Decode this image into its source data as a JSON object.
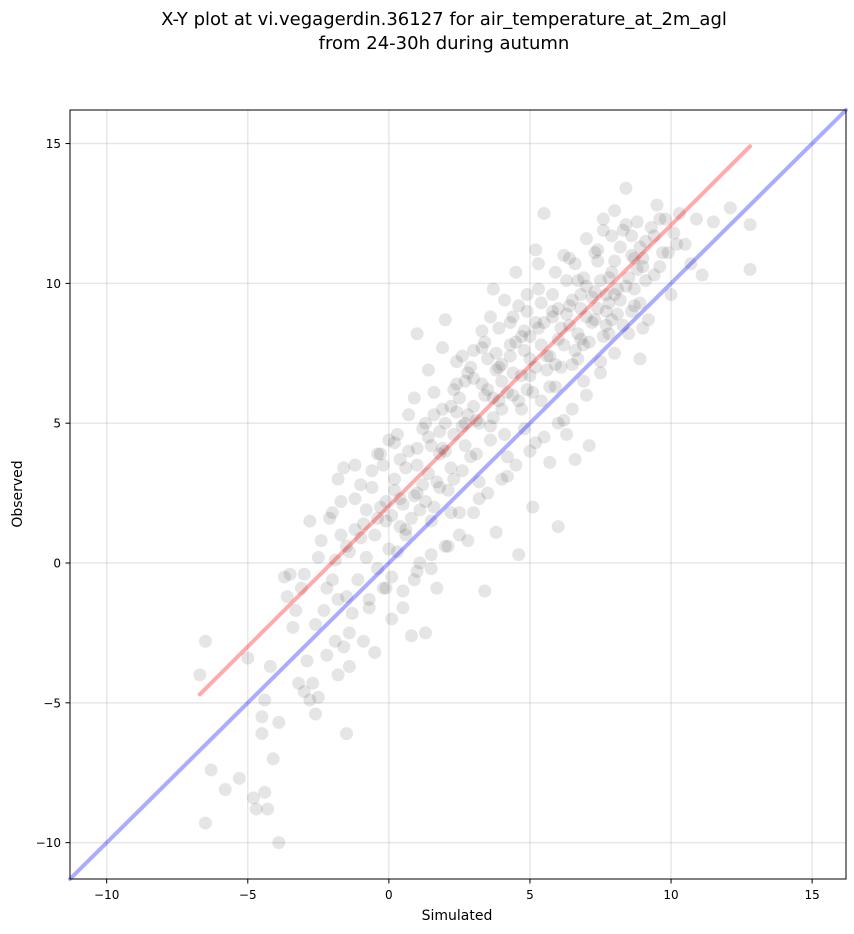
{
  "chart_data": {
    "type": "scatter",
    "title": "X-Y plot at vi.vegagerdin.36127 for air_temperature_at_2m_agl\nfrom 24-30h during autumn",
    "xlabel": "Simulated",
    "ylabel": "Observed",
    "xlim": [
      -11.3,
      16.2
    ],
    "ylim": [
      -11.3,
      16.2
    ],
    "xticks": [
      -10,
      -5,
      0,
      5,
      10,
      15
    ],
    "yticks": [
      -10,
      -5,
      0,
      5,
      10,
      15
    ],
    "xtick_labels": [
      "−10",
      "−5",
      "0",
      "5",
      "10",
      "15"
    ],
    "ytick_labels": [
      "−10",
      "−5",
      "0",
      "5",
      "10",
      "15"
    ],
    "grid": true,
    "point_color": "#000000",
    "point_alpha": 0.1,
    "lines": [
      {
        "x": [
          -6.7,
          12.8
        ],
        "y": [
          -4.7,
          14.9
        ],
        "color": "#ff0000",
        "alpha": 0.33
      },
      {
        "x": [
          -11.3,
          16.2
        ],
        "y": [
          -11.3,
          16.2
        ],
        "color": "#0000ff",
        "alpha": 0.33
      }
    ],
    "points": [
      [
        -6.5,
        -2.8
      ],
      [
        -6.7,
        -4.0
      ],
      [
        -6.5,
        -9.3
      ],
      [
        -6.3,
        -7.4
      ],
      [
        -5.8,
        -8.1
      ],
      [
        -5.3,
        -7.7
      ],
      [
        -5.0,
        -3.4
      ],
      [
        -4.8,
        -8.4
      ],
      [
        -4.7,
        -8.8
      ],
      [
        -4.5,
        -6.1
      ],
      [
        -4.5,
        -5.5
      ],
      [
        -4.4,
        -4.9
      ],
      [
        -4.4,
        -8.2
      ],
      [
        -4.3,
        -8.8
      ],
      [
        -4.2,
        -3.7
      ],
      [
        -4.1,
        -7.0
      ],
      [
        -3.9,
        -10.0
      ],
      [
        -3.9,
        -5.7
      ],
      [
        -3.7,
        -0.5
      ],
      [
        -3.6,
        -1.2
      ],
      [
        -3.5,
        -0.4
      ],
      [
        -3.4,
        -2.3
      ],
      [
        -3.3,
        -1.7
      ],
      [
        -3.2,
        -4.3
      ],
      [
        -3.1,
        -0.9
      ],
      [
        -3.0,
        -4.6
      ],
      [
        -2.9,
        -3.5
      ],
      [
        -2.8,
        -4.9
      ],
      [
        -2.7,
        -4.3
      ],
      [
        -2.6,
        -2.2
      ],
      [
        -2.6,
        -5.4
      ],
      [
        -2.5,
        -4.8
      ],
      [
        -2.5,
        0.2
      ],
      [
        -2.3,
        -1.7
      ],
      [
        -2.2,
        -3.3
      ],
      [
        -2.1,
        1.6
      ],
      [
        -2.0,
        -0.6
      ],
      [
        -1.9,
        -2.8
      ],
      [
        -1.8,
        -1.3
      ],
      [
        -1.8,
        -4.0
      ],
      [
        -1.7,
        2.2
      ],
      [
        -1.6,
        -3.0
      ],
      [
        -1.5,
        -6.1
      ],
      [
        -1.5,
        0.6
      ],
      [
        -1.4,
        -2.5
      ],
      [
        -1.4,
        -3.7
      ],
      [
        -1.3,
        -1.8
      ],
      [
        -1.2,
        1.2
      ],
      [
        -1.1,
        -0.6
      ],
      [
        -1.0,
        2.8
      ],
      [
        -0.9,
        -2.8
      ],
      [
        -0.8,
        0.2
      ],
      [
        -0.7,
        -1.3
      ],
      [
        -0.6,
        3.3
      ],
      [
        -0.5,
        -3.2
      ],
      [
        -0.4,
        -0.2
      ],
      [
        -0.3,
        2.0
      ],
      [
        -0.2,
        -0.9
      ],
      [
        -0.1,
        1.5
      ],
      [
        0.0,
        4.4
      ],
      [
        0.1,
        -2.0
      ],
      [
        0.2,
        2.6
      ],
      [
        0.3,
        0.4
      ],
      [
        0.4,
        3.7
      ],
      [
        0.5,
        -1.6
      ],
      [
        0.6,
        1.0
      ],
      [
        0.7,
        5.3
      ],
      [
        0.8,
        -2.6
      ],
      [
        0.9,
        2.4
      ],
      [
        1.0,
        8.2
      ],
      [
        1.1,
        0.0
      ],
      [
        1.2,
        4.8
      ],
      [
        1.3,
        -2.5
      ],
      [
        1.4,
        3.2
      ],
      [
        1.5,
        1.5
      ],
      [
        1.6,
        6.1
      ],
      [
        1.7,
        -0.9
      ],
      [
        1.8,
        2.7
      ],
      [
        1.9,
        4.1
      ],
      [
        2.0,
        8.7
      ],
      [
        2.1,
        0.6
      ],
      [
        2.2,
        5.6
      ],
      [
        2.3,
        3.0
      ],
      [
        2.4,
        7.2
      ],
      [
        2.5,
        1.8
      ],
      [
        2.6,
        4.9
      ],
      [
        2.7,
        6.5
      ],
      [
        2.8,
        0.8
      ],
      [
        2.9,
        3.8
      ],
      [
        3.0,
        7.6
      ],
      [
        3.1,
        5.1
      ],
      [
        3.2,
        2.3
      ],
      [
        3.3,
        8.3
      ],
      [
        3.4,
        -1.0
      ],
      [
        3.5,
        6.2
      ],
      [
        3.6,
        4.4
      ],
      [
        3.7,
        9.8
      ],
      [
        3.8,
        1.1
      ],
      [
        3.9,
        7.0
      ],
      [
        4.0,
        5.5
      ],
      [
        4.1,
        9.4
      ],
      [
        4.2,
        3.1
      ],
      [
        4.3,
        7.8
      ],
      [
        4.4,
        6.0
      ],
      [
        4.5,
        10.4
      ],
      [
        4.6,
        0.3
      ],
      [
        4.7,
        8.1
      ],
      [
        4.8,
        4.8
      ],
      [
        4.9,
        9.0
      ],
      [
        5.0,
        6.7
      ],
      [
        5.1,
        2.0
      ],
      [
        5.2,
        8.6
      ],
      [
        5.3,
        10.7
      ],
      [
        5.4,
        5.8
      ],
      [
        5.5,
        12.5
      ],
      [
        5.6,
        7.4
      ],
      [
        5.7,
        3.6
      ],
      [
        5.8,
        9.6
      ],
      [
        5.9,
        6.3
      ],
      [
        6.0,
        1.3
      ],
      [
        6.1,
        8.4
      ],
      [
        6.2,
        11.0
      ],
      [
        6.3,
        4.6
      ],
      [
        6.4,
        9.2
      ],
      [
        6.5,
        7.1
      ],
      [
        6.6,
        3.7
      ],
      [
        6.7,
        10.1
      ],
      [
        6.8,
        8.0
      ],
      [
        6.9,
        6.5
      ],
      [
        7.0,
        11.6
      ],
      [
        7.1,
        4.2
      ],
      [
        7.2,
        9.5
      ],
      [
        7.3,
        8.7
      ],
      [
        7.4,
        10.8
      ],
      [
        7.5,
        7.2
      ],
      [
        7.6,
        12.3
      ],
      [
        7.7,
        9.0
      ],
      [
        7.8,
        8.2
      ],
      [
        7.9,
        10.4
      ],
      [
        8.0,
        12.6
      ],
      [
        8.1,
        9.8
      ],
      [
        8.2,
        11.3
      ],
      [
        8.3,
        8.5
      ],
      [
        8.4,
        13.4
      ],
      [
        8.5,
        10.2
      ],
      [
        8.6,
        11.7
      ],
      [
        8.7,
        9.2
      ],
      [
        8.8,
        12.2
      ],
      [
        8.9,
        7.3
      ],
      [
        9.0,
        10.9
      ],
      [
        9.1,
        11.5
      ],
      [
        9.2,
        8.7
      ],
      [
        9.3,
        12.0
      ],
      [
        9.4,
        10.3
      ],
      [
        9.5,
        12.8
      ],
      [
        9.7,
        11.1
      ],
      [
        9.8,
        12.3
      ],
      [
        10.0,
        9.6
      ],
      [
        10.1,
        11.8
      ],
      [
        10.3,
        12.5
      ],
      [
        10.5,
        11.4
      ],
      [
        10.7,
        10.7
      ],
      [
        10.9,
        12.3
      ],
      [
        11.1,
        10.3
      ],
      [
        11.5,
        12.2
      ],
      [
        12.1,
        12.7
      ],
      [
        12.8,
        12.1
      ],
      [
        12.8,
        10.5
      ],
      [
        0.2,
        3.0
      ],
      [
        0.5,
        2.1
      ],
      [
        1.0,
        3.5
      ],
      [
        1.5,
        4.2
      ],
      [
        2.0,
        5.0
      ],
      [
        2.5,
        5.9
      ],
      [
        3.0,
        6.6
      ],
      [
        3.5,
        7.3
      ],
      [
        4.0,
        7.1
      ],
      [
        4.5,
        7.9
      ],
      [
        5.0,
        8.1
      ],
      [
        5.5,
        8.6
      ],
      [
        6.0,
        9.1
      ],
      [
        6.5,
        9.4
      ],
      [
        7.0,
        9.9
      ],
      [
        7.5,
        10.1
      ],
      [
        8.0,
        10.8
      ],
      [
        1.2,
        2.8
      ],
      [
        1.8,
        3.9
      ],
      [
        2.3,
        4.6
      ],
      [
        2.8,
        5.3
      ],
      [
        3.3,
        6.4
      ],
      [
        3.8,
        6.9
      ],
      [
        4.3,
        7.4
      ],
      [
        4.8,
        7.6
      ],
      [
        5.3,
        8.4
      ],
      [
        5.8,
        8.8
      ],
      [
        6.3,
        8.9
      ],
      [
        6.8,
        9.6
      ],
      [
        7.3,
        9.7
      ],
      [
        7.8,
        10.2
      ],
      [
        0.8,
        1.6
      ],
      [
        1.3,
        2.2
      ],
      [
        2.2,
        3.4
      ],
      [
        3.2,
        5.0
      ],
      [
        4.2,
        6.1
      ],
      [
        5.2,
        7.0
      ],
      [
        6.2,
        7.8
      ],
      [
        7.2,
        8.6
      ],
      [
        8.2,
        9.4
      ],
      [
        -0.5,
        1.0
      ],
      [
        0.0,
        0.5
      ],
      [
        0.6,
        1.2
      ],
      [
        1.6,
        2.0
      ],
      [
        2.6,
        3.3
      ],
      [
        3.6,
        4.9
      ],
      [
        4.6,
        5.8
      ],
      [
        5.6,
        6.9
      ],
      [
        6.6,
        7.6
      ],
      [
        7.6,
        8.1
      ],
      [
        8.6,
        9.0
      ],
      [
        -1.2,
        2.3
      ],
      [
        -0.8,
        1.9
      ],
      [
        -0.3,
        3.9
      ],
      [
        0.3,
        4.6
      ],
      [
        0.9,
        5.9
      ],
      [
        1.4,
        6.9
      ],
      [
        1.9,
        7.7
      ],
      [
        2.4,
        6.4
      ],
      [
        2.9,
        7.0
      ],
      [
        3.4,
        7.9
      ],
      [
        3.9,
        8.4
      ],
      [
        4.4,
        8.8
      ],
      [
        4.9,
        9.6
      ],
      [
        5.4,
        9.3
      ],
      [
        5.9,
        10.4
      ],
      [
        6.4,
        10.9
      ],
      [
        6.9,
        10.2
      ],
      [
        7.4,
        11.2
      ],
      [
        7.9,
        11.7
      ],
      [
        8.4,
        12.1
      ],
      [
        8.9,
        11.3
      ],
      [
        9.4,
        11.7
      ],
      [
        -2.4,
        0.8
      ],
      [
        -1.9,
        0.1
      ],
      [
        -1.6,
        3.4
      ],
      [
        -1.0,
        0.9
      ],
      [
        -0.6,
        2.7
      ],
      [
        -0.1,
        2.2
      ],
      [
        0.4,
        1.3
      ],
      [
        1.1,
        1.9
      ],
      [
        1.7,
        2.9
      ],
      [
        2.1,
        2.6
      ],
      [
        2.7,
        4.2
      ],
      [
        3.1,
        3.9
      ],
      [
        3.7,
        5.2
      ],
      [
        4.1,
        4.6
      ],
      [
        4.7,
        5.5
      ],
      [
        5.1,
        6.1
      ],
      [
        5.7,
        6.3
      ],
      [
        6.1,
        7.0
      ],
      [
        6.7,
        7.3
      ],
      [
        7.1,
        7.9
      ],
      [
        7.7,
        8.5
      ],
      [
        8.1,
        8.9
      ],
      [
        8.7,
        9.8
      ],
      [
        9.1,
        10.1
      ],
      [
        9.6,
        10.6
      ],
      [
        3.5,
        2.5
      ],
      [
        4.0,
        3.0
      ],
      [
        4.5,
        3.5
      ],
      [
        5.0,
        4.0
      ],
      [
        5.5,
        4.5
      ],
      [
        6.0,
        5.0
      ],
      [
        6.5,
        5.5
      ],
      [
        3.0,
        1.8
      ],
      [
        2.5,
        1.0
      ],
      [
        2.0,
        0.6
      ],
      [
        1.5,
        0.3
      ],
      [
        1.0,
        -0.3
      ],
      [
        0.5,
        -1.0
      ],
      [
        0.1,
        -0.5
      ],
      [
        7.0,
        6.0
      ],
      [
        7.5,
        6.8
      ],
      [
        8.0,
        7.5
      ],
      [
        8.5,
        8.2
      ],
      [
        9.0,
        8.4
      ],
      [
        -0.2,
        3.5
      ],
      [
        0.7,
        4.0
      ],
      [
        1.3,
        5.0
      ],
      [
        2.3,
        6.2
      ],
      [
        3.3,
        7.7
      ],
      [
        4.3,
        8.6
      ],
      [
        5.3,
        9.8
      ],
      [
        6.3,
        10.1
      ],
      [
        7.3,
        11.1
      ],
      [
        8.3,
        11.9
      ],
      [
        1.9,
        5.5
      ],
      [
        2.8,
        6.8
      ],
      [
        3.8,
        7.5
      ],
      [
        4.8,
        8.3
      ],
      [
        5.8,
        9.0
      ],
      [
        6.8,
        9.1
      ],
      [
        7.8,
        9.3
      ],
      [
        8.8,
        10.5
      ],
      [
        -0.9,
        1.4
      ],
      [
        0.1,
        1.7
      ],
      [
        1.0,
        2.5
      ],
      [
        2.0,
        4.0
      ],
      [
        3.0,
        5.6
      ],
      [
        4.0,
        6.5
      ],
      [
        5.0,
        7.3
      ],
      [
        6.0,
        8.0
      ],
      [
        7.0,
        8.8
      ],
      [
        8.0,
        9.6
      ],
      [
        9.0,
        10.6
      ],
      [
        1.4,
        4.5
      ],
      [
        2.4,
        5.4
      ],
      [
        3.4,
        6.0
      ],
      [
        4.4,
        6.8
      ],
      [
        5.4,
        7.8
      ],
      [
        6.4,
        8.5
      ],
      [
        7.4,
        9.1
      ],
      [
        8.4,
        9.9
      ],
      [
        0.4,
        2.3
      ],
      [
        -0.4,
        1.6
      ],
      [
        -1.4,
        0.4
      ],
      [
        -1.7,
        1.0
      ],
      [
        -2.0,
        1.8
      ],
      [
        -2.8,
        1.5
      ],
      [
        -3.0,
        -0.4
      ],
      [
        5.2,
        11.2
      ],
      [
        4.6,
        9.2
      ],
      [
        3.6,
        8.8
      ],
      [
        2.6,
        7.4
      ],
      [
        1.6,
        5.3
      ],
      [
        0.6,
        3.4
      ],
      [
        6.6,
        10.7
      ],
      [
        7.6,
        11.9
      ],
      [
        8.6,
        11.0
      ],
      [
        9.6,
        12.3
      ],
      [
        9.9,
        11.1
      ],
      [
        10.2,
        11.4
      ],
      [
        3.9,
        5.8
      ],
      [
        4.9,
        6.2
      ],
      [
        5.9,
        7.1
      ],
      [
        6.9,
        7.8
      ],
      [
        7.9,
        8.7
      ],
      [
        8.9,
        9.3
      ],
      [
        2.2,
        1.8
      ],
      [
        3.2,
        2.9
      ],
      [
        4.2,
        3.8
      ],
      [
        5.2,
        4.3
      ],
      [
        6.2,
        5.1
      ],
      [
        -2.2,
        -0.9
      ],
      [
        -1.5,
        -1.2
      ],
      [
        -0.7,
        -1.6
      ],
      [
        -0.1,
        -0.9
      ],
      [
        0.9,
        -0.6
      ],
      [
        1.5,
        -0.2
      ],
      [
        -1.8,
        3.0
      ],
      [
        -1.2,
        3.5
      ],
      [
        -0.4,
        3.9
      ],
      [
        0.2,
        4.3
      ],
      [
        1.0,
        4.1
      ],
      [
        1.8,
        4.7
      ],
      [
        2.7,
        5.0
      ],
      [
        3.7,
        5.9
      ],
      [
        4.7,
        6.7
      ],
      [
        5.7,
        7.4
      ],
      [
        6.7,
        8.2
      ],
      [
        7.7,
        9.6
      ],
      [
        8.7,
        10.9
      ]
    ]
  }
}
